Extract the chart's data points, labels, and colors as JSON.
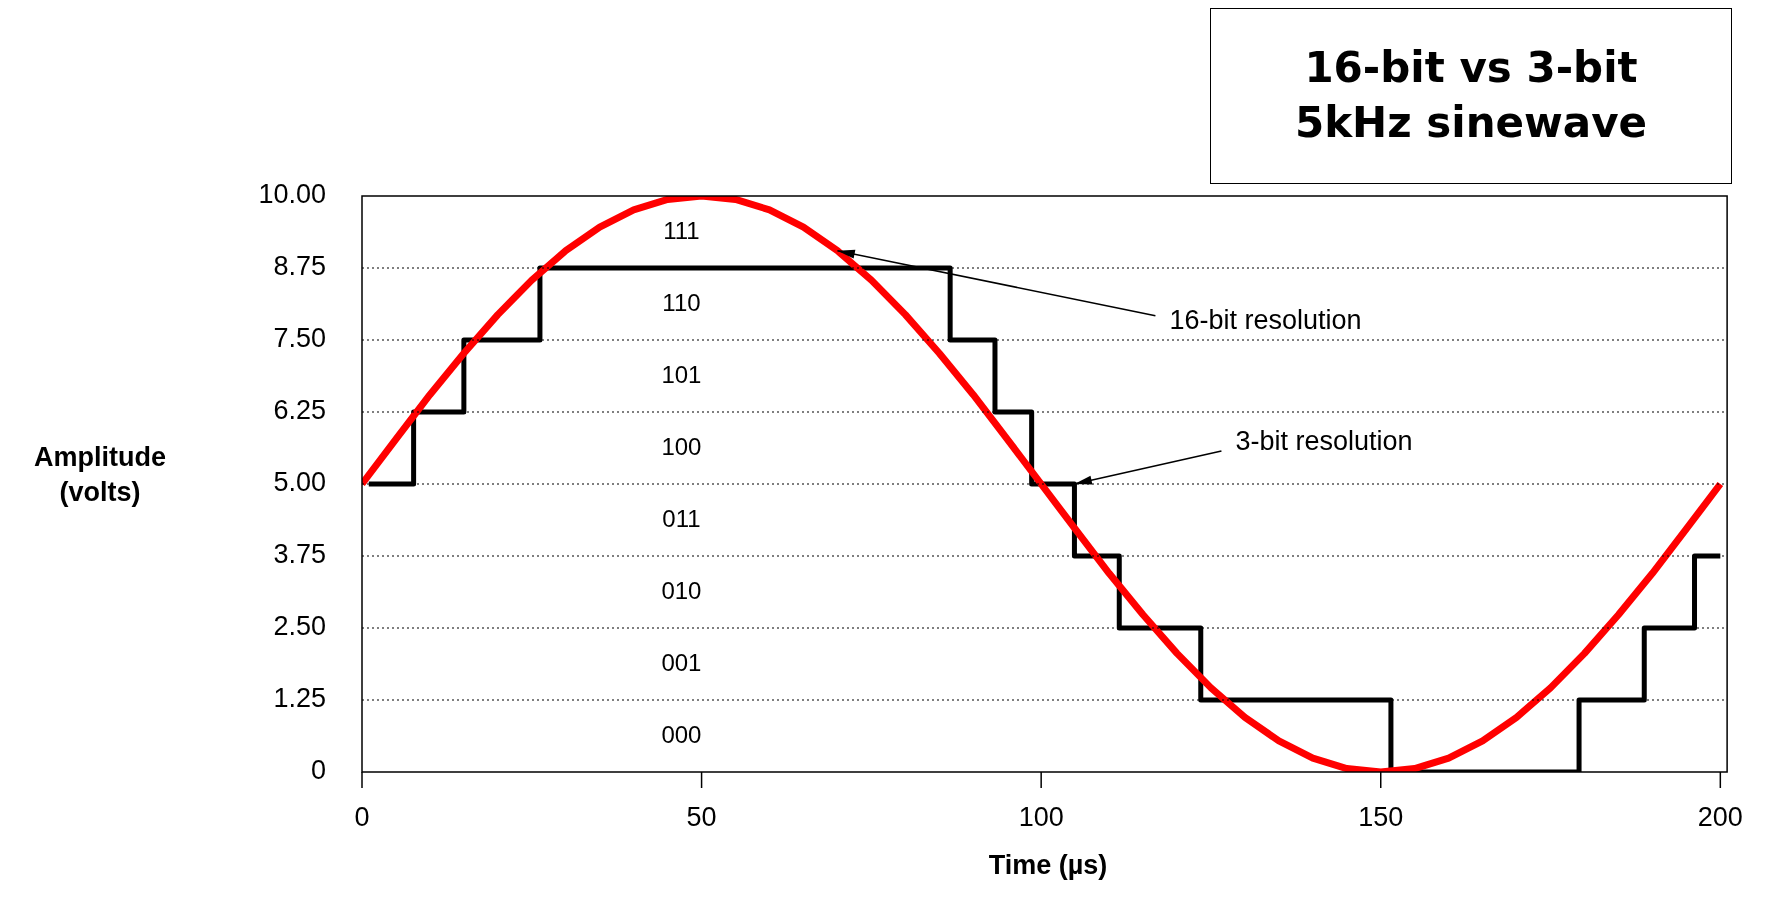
{
  "chart_data": {
    "type": "line",
    "title": "16-bit vs 3-bit",
    "subtitle": "5kHz sinewave",
    "xlabel": "Time (µs)",
    "ylabel": "Amplitude (volts)",
    "xlim": [
      0,
      201
    ],
    "xticks": [
      0,
      50,
      100,
      150,
      200
    ],
    "ylim": [
      0,
      10
    ],
    "yticks": [
      0,
      1.25,
      {
        "value": 2.5,
        "label": "2.50"
      },
      3.75,
      {
        "value": 5,
        "label": "5.00"
      },
      6.25,
      {
        "value": 7.5,
        "label": "7.50"
      },
      8.75,
      {
        "value": 10,
        "label": "10.00"
      }
    ],
    "grid": "y",
    "line_style": "solid",
    "marker": "none",
    "series": [
      {
        "type": "line",
        "color": "#ff0000",
        "x": [
          0,
          5,
          10,
          15,
          20,
          25,
          30,
          35,
          40,
          45,
          50,
          55,
          60,
          65,
          70,
          75,
          80,
          85,
          90,
          95,
          100,
          105,
          110,
          115,
          120,
          125,
          130,
          135,
          140,
          145,
          150,
          155,
          160,
          165,
          170,
          175,
          180,
          185,
          190,
          195,
          200
        ],
        "values": [
          5,
          5.78,
          6.55,
          7.27,
          7.94,
          8.54,
          9.05,
          9.46,
          9.76,
          9.94,
          10,
          9.94,
          9.76,
          9.46,
          9.05,
          8.54,
          7.94,
          7.27,
          6.55,
          5.78,
          5,
          4.22,
          3.45,
          2.73,
          2.06,
          1.46,
          0.95,
          0.54,
          0.24,
          0.06,
          0,
          0.06,
          0.24,
          0.54,
          0.95,
          1.46,
          2.06,
          2.73,
          3.45,
          4.22,
          5
        ]
      },
      {
        "type": "step",
        "color": "#000000",
        "x": [
          1,
          7.6,
          15,
          26.2,
          86.6,
          93.2,
          98.6,
          104.9,
          111.5,
          123.5,
          151.5,
          179.2,
          188.8,
          196.2,
          200
        ],
        "values": [
          5,
          6.25,
          7.5,
          8.75,
          7.5,
          6.25,
          5,
          3.75,
          2.5,
          1.25,
          0,
          1.25,
          2.5,
          3.75,
          3.75
        ]
      }
    ],
    "annotations": [
      "111",
      "110",
      "101",
      "100",
      "011",
      "010",
      "001",
      "000",
      {
        "text": "16-bit resolution",
        "x": 70,
        "y": 9.05
      },
      {
        "text": "3-bit resolution",
        "x": 104.9,
        "y": 5
      }
    ]
  }
}
